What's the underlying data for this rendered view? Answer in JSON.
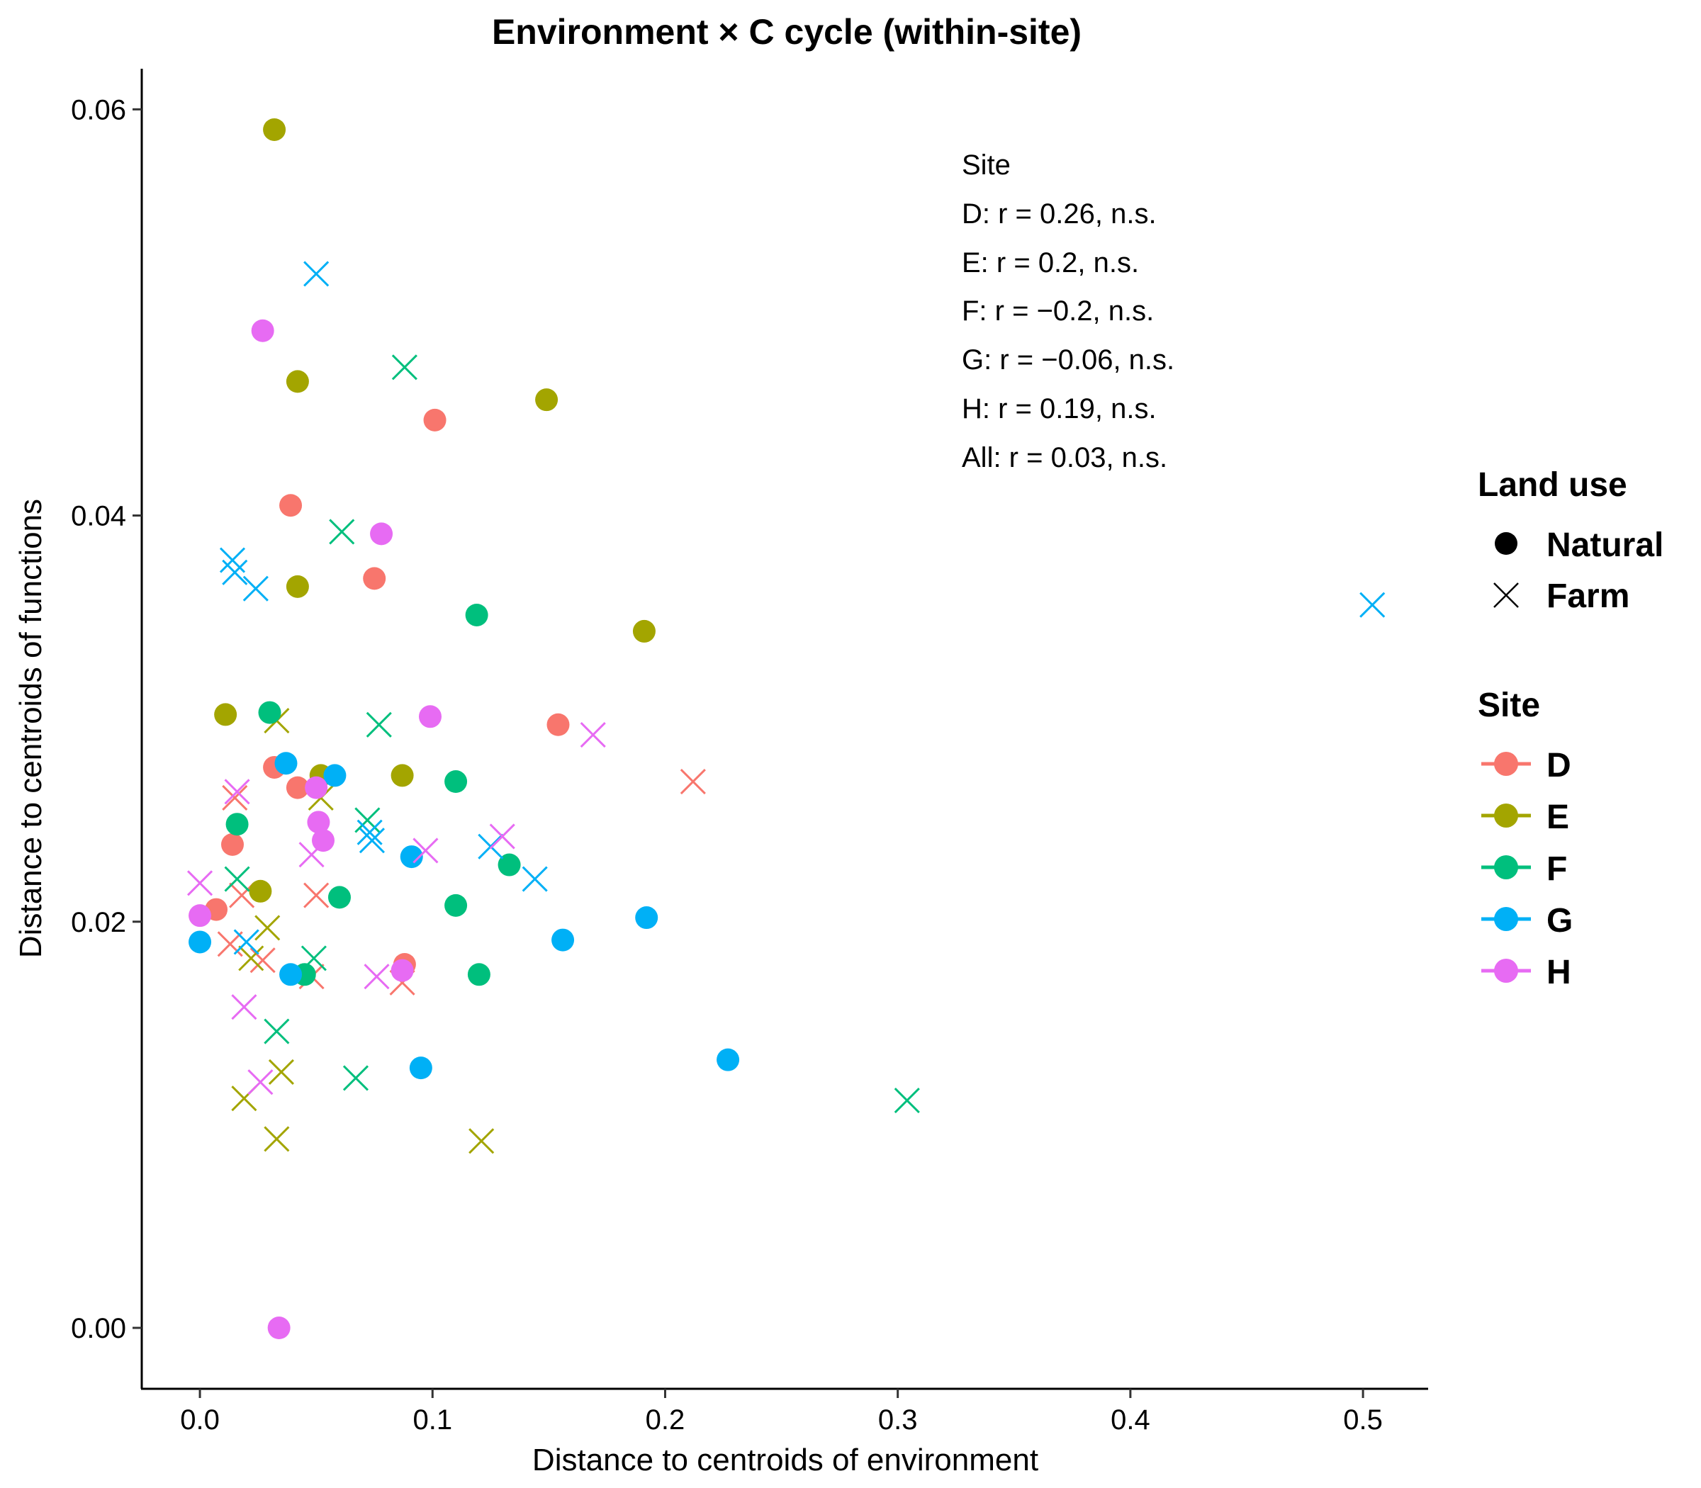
{
  "chart_data": {
    "type": "scatter",
    "title": "Environment × C cycle (within-site)",
    "xlabel": "Distance to centroids of environment",
    "ylabel": "Distance to centroids of functions",
    "xlim": [
      -0.025,
      0.528
    ],
    "ylim": [
      -0.003,
      0.062
    ],
    "x_ticks": [
      0.0,
      0.1,
      0.2,
      0.3,
      0.4,
      0.5
    ],
    "x_tick_labels": [
      "0.0",
      "0.1",
      "0.2",
      "0.3",
      "0.4",
      "0.5"
    ],
    "y_ticks": [
      0.0,
      0.02,
      0.04,
      0.06
    ],
    "y_tick_labels": [
      "0.00",
      "0.02",
      "0.04",
      "0.06"
    ],
    "grid": false,
    "legend_position": "right",
    "annotation": {
      "title": "Site",
      "lines": [
        "D: r = 0.26, n.s.",
        "E: r = 0.2, n.s.",
        "F: r = −0.2, n.s.",
        "G: r = −0.06, n.s.",
        "H: r = 0.19, n.s.",
        "All: r = 0.03, n.s."
      ]
    },
    "legend_land_use": {
      "title": "Land use",
      "items": [
        {
          "label": "Natural",
          "shape": "circle"
        },
        {
          "label": "Farm",
          "shape": "cross"
        }
      ]
    },
    "legend_site": {
      "title": "Site",
      "items": [
        {
          "label": "D",
          "color": "#F8766D"
        },
        {
          "label": "E",
          "color": "#A3A500"
        },
        {
          "label": "F",
          "color": "#00BF7D"
        },
        {
          "label": "G",
          "color": "#00B0F6"
        },
        {
          "label": "H",
          "color": "#E76BF3"
        }
      ]
    },
    "series": [
      {
        "site": "D",
        "land_use": "Natural",
        "color": "#F8766D",
        "points": [
          [
            0.101,
            0.0447
          ],
          [
            0.039,
            0.0405
          ],
          [
            0.075,
            0.0369
          ],
          [
            0.154,
            0.0297
          ],
          [
            0.032,
            0.0276
          ],
          [
            0.042,
            0.0266
          ],
          [
            0.014,
            0.0238
          ],
          [
            0.007,
            0.0206
          ],
          [
            0.088,
            0.0179
          ]
        ]
      },
      {
        "site": "D",
        "land_use": "Farm",
        "color": "#F8766D",
        "points": [
          [
            0.212,
            0.0269
          ],
          [
            0.015,
            0.0261
          ],
          [
            0.018,
            0.0213
          ],
          [
            0.05,
            0.0213
          ],
          [
            0.013,
            0.0189
          ],
          [
            0.027,
            0.0181
          ],
          [
            0.048,
            0.0173
          ],
          [
            0.087,
            0.017
          ]
        ]
      },
      {
        "site": "E",
        "land_use": "Natural",
        "color": "#A3A500",
        "points": [
          [
            0.032,
            0.059
          ],
          [
            0.042,
            0.0466
          ],
          [
            0.149,
            0.0457
          ],
          [
            0.042,
            0.0365
          ],
          [
            0.191,
            0.0343
          ],
          [
            0.011,
            0.0302
          ],
          [
            0.052,
            0.0272
          ],
          [
            0.087,
            0.0272
          ],
          [
            0.026,
            0.0215
          ]
        ]
      },
      {
        "site": "E",
        "land_use": "Farm",
        "color": "#A3A500",
        "points": [
          [
            0.033,
            0.0299
          ],
          [
            0.052,
            0.0261
          ],
          [
            0.029,
            0.0197
          ],
          [
            0.022,
            0.0182
          ],
          [
            0.035,
            0.0126
          ],
          [
            0.019,
            0.0113
          ],
          [
            0.033,
            0.0093
          ],
          [
            0.121,
            0.0092
          ]
        ]
      },
      {
        "site": "F",
        "land_use": "Natural",
        "color": "#00BF7D",
        "points": [
          [
            0.119,
            0.0351
          ],
          [
            0.03,
            0.0303
          ],
          [
            0.11,
            0.0269
          ],
          [
            0.016,
            0.0248
          ],
          [
            0.133,
            0.0228
          ],
          [
            0.06,
            0.0212
          ],
          [
            0.11,
            0.0208
          ],
          [
            0.12,
            0.0174
          ],
          [
            0.045,
            0.0174
          ]
        ]
      },
      {
        "site": "F",
        "land_use": "Farm",
        "color": "#00BF7D",
        "points": [
          [
            0.088,
            0.0473
          ],
          [
            0.061,
            0.0392
          ],
          [
            0.077,
            0.0297
          ],
          [
            0.072,
            0.025
          ],
          [
            0.016,
            0.0221
          ],
          [
            0.049,
            0.0182
          ],
          [
            0.033,
            0.0146
          ],
          [
            0.067,
            0.0123
          ],
          [
            0.304,
            0.0112
          ]
        ]
      },
      {
        "site": "G",
        "land_use": "Natural",
        "color": "#00B0F6",
        "points": [
          [
            0.037,
            0.0278
          ],
          [
            0.058,
            0.0272
          ],
          [
            0.091,
            0.0232
          ],
          [
            0.192,
            0.0202
          ],
          [
            0.156,
            0.0191
          ],
          [
            0.0,
            0.019
          ],
          [
            0.039,
            0.0174
          ],
          [
            0.095,
            0.0128
          ],
          [
            0.227,
            0.0132
          ]
        ]
      },
      {
        "site": "G",
        "land_use": "Farm",
        "color": "#00B0F6",
        "points": [
          [
            0.05,
            0.0519
          ],
          [
            0.014,
            0.0378
          ],
          [
            0.015,
            0.0372
          ],
          [
            0.024,
            0.0364
          ],
          [
            0.504,
            0.0356
          ],
          [
            0.073,
            0.0244
          ],
          [
            0.074,
            0.024
          ],
          [
            0.125,
            0.0237
          ],
          [
            0.144,
            0.0221
          ],
          [
            0.02,
            0.019
          ]
        ]
      },
      {
        "site": "H",
        "land_use": "Natural",
        "color": "#E76BF3",
        "points": [
          [
            0.027,
            0.0491
          ],
          [
            0.078,
            0.0391
          ],
          [
            0.099,
            0.0301
          ],
          [
            0.05,
            0.0266
          ],
          [
            0.051,
            0.0249
          ],
          [
            0.053,
            0.024
          ],
          [
            0.0,
            0.0203
          ],
          [
            0.087,
            0.0176
          ],
          [
            0.034,
            0.0
          ]
        ]
      },
      {
        "site": "H",
        "land_use": "Farm",
        "color": "#E76BF3",
        "points": [
          [
            0.169,
            0.0292
          ],
          [
            0.016,
            0.0264
          ],
          [
            0.13,
            0.0242
          ],
          [
            0.097,
            0.0235
          ],
          [
            0.048,
            0.0233
          ],
          [
            0.0,
            0.0219
          ],
          [
            0.076,
            0.0173
          ],
          [
            0.019,
            0.0158
          ],
          [
            0.026,
            0.0121
          ]
        ]
      }
    ]
  }
}
